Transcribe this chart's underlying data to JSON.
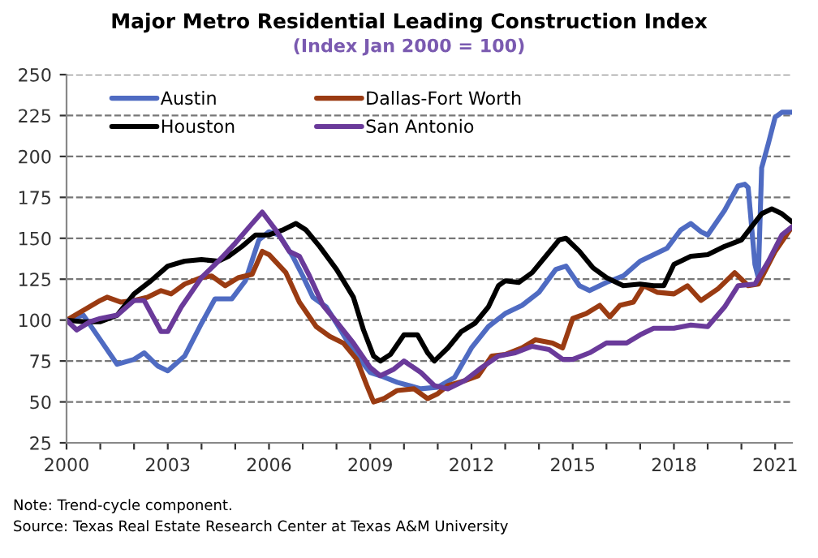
{
  "chart_data": {
    "type": "line",
    "title": "Major Metro Residential Leading Construction Index",
    "subtitle": "(Index Jan 2000 = 100)",
    "annotations": [
      "Note: Trend-cycle component.",
      "Source: Texas Real Estate Research Center at Texas A&M University"
    ],
    "xlim": [
      2000,
      2021.5
    ],
    "xticks": [
      2000,
      {
        "value": 2001,
        "label": null
      },
      {
        "value": 2002,
        "label": null
      },
      2003,
      {
        "value": 2004,
        "label": null
      },
      {
        "value": 2005,
        "label": null
      },
      2006,
      {
        "value": 2007,
        "label": null
      },
      {
        "value": 2008,
        "label": null
      },
      2009,
      {
        "value": 2010,
        "label": null
      },
      {
        "value": 2011,
        "label": null
      },
      2012,
      {
        "value": 2013,
        "label": null
      },
      {
        "value": 2014,
        "label": null
      },
      2015,
      {
        "value": 2016,
        "label": null
      },
      {
        "value": 2017,
        "label": null
      },
      2018,
      {
        "value": 2019,
        "label": null
      },
      {
        "value": 2020,
        "label": null
      },
      2021
    ],
    "ylim": [
      25,
      250
    ],
    "yticks": [
      25,
      50,
      75,
      100,
      125,
      150,
      175,
      200,
      225,
      250
    ],
    "grid": "y",
    "legend": "top left",
    "line_style": "solid",
    "marker": "none",
    "series": [
      {
        "name": "Austin",
        "color": "#4f6bc2",
        "x": [
          2000,
          2000.5,
          2001,
          2001.5,
          2002,
          2002.3,
          2002.7,
          2003,
          2003.5,
          2004,
          2004.4,
          2004.9,
          2005.3,
          2005.7,
          2006,
          2006.3,
          2006.7,
          2007,
          2007.3,
          2007.7,
          2008,
          2008.5,
          2009,
          2009.3,
          2009.8,
          2010.5,
          2011,
          2011.5,
          2012,
          2012.5,
          2013,
          2013.5,
          2014,
          2014.5,
          2014.8,
          2015.2,
          2015.5,
          2016,
          2016.5,
          2017,
          2017.5,
          2017.8,
          2018.2,
          2018.5,
          2018.8,
          2019,
          2019.5,
          2019.9,
          2020.1,
          2020.2,
          2020.4,
          2020.5,
          2020.6,
          2020.8,
          2021,
          2021.2,
          2021.5
        ],
        "values": [
          100,
          103,
          88,
          73,
          76,
          80,
          72,
          69,
          78,
          98,
          113,
          113,
          124,
          149,
          154,
          152,
          139,
          127,
          114,
          108,
          98,
          81,
          68,
          66,
          62,
          58,
          59,
          65,
          83,
          96,
          104,
          109,
          117,
          131,
          133,
          121,
          118,
          123,
          127,
          136,
          141,
          144,
          155,
          159,
          154,
          152,
          167,
          182,
          183,
          181,
          134,
          126,
          193,
          208,
          224,
          227,
          227
        ]
      },
      {
        "name": "Dallas-Fort Worth",
        "color": "#9a3b12",
        "x": [
          2000,
          2000.5,
          2001,
          2001.2,
          2001.6,
          2002,
          2002.4,
          2002.8,
          2003.1,
          2003.5,
          2004,
          2004.3,
          2004.7,
          2005.1,
          2005.5,
          2005.8,
          2006,
          2006.5,
          2006.9,
          2007.4,
          2007.8,
          2008.2,
          2008.6,
          2008.9,
          2009.1,
          2009.4,
          2009.8,
          2010.3,
          2010.7,
          2011,
          2011.3,
          2011.8,
          2012.2,
          2012.6,
          2013,
          2013.5,
          2013.9,
          2014.4,
          2014.7,
          2015,
          2015.4,
          2015.8,
          2016.1,
          2016.4,
          2016.8,
          2017.1,
          2017.5,
          2018,
          2018.4,
          2018.8,
          2019.3,
          2019.8,
          2020.2,
          2020.5,
          2021,
          2021.5
        ],
        "values": [
          100,
          106,
          112,
          114,
          111,
          112,
          114,
          118,
          116,
          122,
          126,
          127,
          121,
          126,
          128,
          142,
          140,
          129,
          111,
          96,
          90,
          86,
          76,
          60,
          50,
          52,
          57,
          58,
          52,
          55,
          60,
          63,
          66,
          78,
          79,
          83,
          88,
          86,
          83,
          101,
          104,
          109,
          102,
          109,
          111,
          121,
          117,
          116,
          121,
          112,
          119,
          129,
          121,
          122,
          142,
          157
        ]
      },
      {
        "name": "Houston",
        "color": "#000000",
        "x": [
          2000,
          2000.5,
          2001,
          2001.5,
          2002,
          2002.5,
          2003,
          2003.5,
          2004,
          2004.5,
          2004.8,
          2005.2,
          2005.6,
          2006,
          2006.4,
          2006.8,
          2007.1,
          2007.5,
          2008,
          2008.5,
          2008.8,
          2009.1,
          2009.3,
          2009.6,
          2010,
          2010.4,
          2010.7,
          2010.9,
          2011.3,
          2011.7,
          2012.1,
          2012.5,
          2012.8,
          2013,
          2013.4,
          2013.8,
          2014.2,
          2014.6,
          2014.8,
          2015.2,
          2015.6,
          2016,
          2016.5,
          2017,
          2017.4,
          2017.7,
          2018,
          2018.5,
          2019,
          2019.5,
          2020,
          2020.3,
          2020.6,
          2020.9,
          2021.2,
          2021.5
        ],
        "values": [
          100,
          99,
          99,
          103,
          116,
          124,
          133,
          136,
          137,
          136,
          139,
          145,
          152,
          152,
          155,
          159,
          155,
          145,
          131,
          114,
          94,
          78,
          75,
          79,
          91,
          91,
          80,
          75,
          83,
          93,
          98,
          108,
          121,
          124,
          123,
          129,
          139,
          149,
          150,
          142,
          132,
          126,
          121,
          122,
          121,
          121,
          134,
          139,
          140,
          145,
          149,
          157,
          165,
          168,
          165,
          160
        ]
      },
      {
        "name": "San Antonio",
        "color": "#6a3a9a",
        "x": [
          2000,
          2000.3,
          2000.7,
          2001,
          2001.5,
          2002,
          2002.3,
          2002.8,
          2003,
          2003.4,
          2004,
          2004.5,
          2005,
          2005.5,
          2005.8,
          2006.2,
          2006.6,
          2006.9,
          2007.2,
          2007.6,
          2008,
          2008.5,
          2009,
          2009.3,
          2009.7,
          2010,
          2010.5,
          2010.9,
          2011.3,
          2011.8,
          2012.3,
          2012.8,
          2013.3,
          2013.8,
          2014.3,
          2014.7,
          2015,
          2015.5,
          2016,
          2016.6,
          2017,
          2017.4,
          2018,
          2018.5,
          2019,
          2019.5,
          2019.9,
          2020.4,
          2020.8,
          2021.2,
          2021.5
        ],
        "values": [
          100,
          94,
          99,
          101,
          103,
          112,
          112,
          93,
          93,
          108,
          126,
          136,
          147,
          159,
          166,
          155,
          142,
          139,
          127,
          109,
          99,
          86,
          71,
          66,
          70,
          75,
          68,
          60,
          58,
          63,
          71,
          78,
          80,
          84,
          82,
          76,
          76,
          80,
          86,
          86,
          91,
          95,
          95,
          97,
          96,
          108,
          121,
          122,
          136,
          152,
          157
        ]
      }
    ]
  }
}
